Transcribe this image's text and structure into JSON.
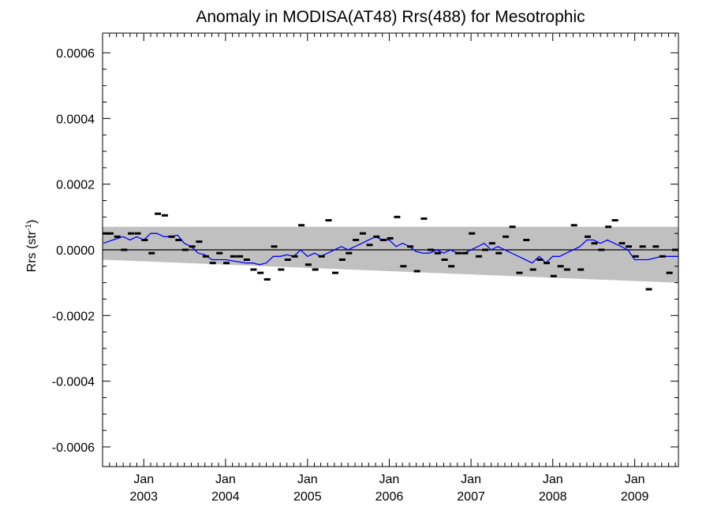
{
  "chart_data": {
    "type": "scatter",
    "title": "Anomaly in MODISA(AT48) Rrs(488) for Mesotrophic",
    "ylabel": {
      "prefix": "Rrs (str",
      "sup": "-1",
      "suffix": ")"
    },
    "xlabel": "",
    "x_range": [
      "2002-07-01",
      "2009-07-15"
    ],
    "ylim": [
      -0.00066,
      0.00066
    ],
    "y_ticks": [
      {
        "value": 0.0006,
        "label": "0.0006"
      },
      {
        "value": 0.0004,
        "label": "0.0004"
      },
      {
        "value": 0.0002,
        "label": "0.0002"
      },
      {
        "value": 0.0,
        "label": "0.0000"
      },
      {
        "value": -0.0002,
        "label": "-0.0002"
      },
      {
        "value": -0.0004,
        "label": "-0.0004"
      },
      {
        "value": -0.0006,
        "label": "-0.0006"
      }
    ],
    "x_ticks": [
      {
        "date": "2003-01-01",
        "month": "Jan",
        "year": "2003"
      },
      {
        "date": "2004-01-01",
        "month": "Jan",
        "year": "2004"
      },
      {
        "date": "2005-01-01",
        "month": "Jan",
        "year": "2005"
      },
      {
        "date": "2006-01-01",
        "month": "Jan",
        "year": "2006"
      },
      {
        "date": "2007-01-01",
        "month": "Jan",
        "year": "2007"
      },
      {
        "date": "2008-01-01",
        "month": "Jan",
        "year": "2008"
      },
      {
        "date": "2009-01-01",
        "month": "Jan",
        "year": "2009"
      }
    ],
    "grid": false,
    "legend": "none",
    "band": {
      "color": "#c0c0c0",
      "upper": [
        {
          "date": "2002-07-01",
          "y": 7e-05
        },
        {
          "date": "2009-07-15",
          "y": 7e-05
        }
      ],
      "lower": [
        {
          "date": "2002-07-01",
          "y": -3e-05
        },
        {
          "date": "2009-07-15",
          "y": -0.0001
        }
      ]
    },
    "zero_line": {
      "y": 0.0,
      "color": "#000000"
    },
    "series": [
      {
        "type": "scatter",
        "marker": "dash",
        "color": "#000000",
        "points": [
          {
            "date": "2002-07-05",
            "y": 5e-05
          },
          {
            "date": "2002-08-05",
            "y": 5e-05
          },
          {
            "date": "2002-09-05",
            "y": 4e-05
          },
          {
            "date": "2002-10-05",
            "y": 0.0
          },
          {
            "date": "2002-11-05",
            "y": 5e-05
          },
          {
            "date": "2002-12-05",
            "y": 5e-05
          },
          {
            "date": "2003-01-05",
            "y": 3e-05
          },
          {
            "date": "2003-02-05",
            "y": -1e-05
          },
          {
            "date": "2003-03-05",
            "y": 0.00011
          },
          {
            "date": "2003-04-05",
            "y": 0.000105
          },
          {
            "date": "2003-05-05",
            "y": 4e-05
          },
          {
            "date": "2003-06-05",
            "y": 3e-05
          },
          {
            "date": "2003-07-05",
            "y": 0.0
          },
          {
            "date": "2003-08-05",
            "y": 1e-05
          },
          {
            "date": "2003-09-05",
            "y": 2.5e-05
          },
          {
            "date": "2003-10-05",
            "y": -2e-05
          },
          {
            "date": "2003-11-05",
            "y": -4e-05
          },
          {
            "date": "2003-12-05",
            "y": -1e-05
          },
          {
            "date": "2004-01-05",
            "y": -4e-05
          },
          {
            "date": "2004-02-05",
            "y": -2e-05
          },
          {
            "date": "2004-03-05",
            "y": -2e-05
          },
          {
            "date": "2004-04-05",
            "y": -3e-05
          },
          {
            "date": "2004-05-05",
            "y": -6e-05
          },
          {
            "date": "2004-06-05",
            "y": -7e-05
          },
          {
            "date": "2004-07-05",
            "y": -9e-05
          },
          {
            "date": "2004-08-05",
            "y": 1e-05
          },
          {
            "date": "2004-09-05",
            "y": -6e-05
          },
          {
            "date": "2004-10-05",
            "y": -3e-05
          },
          {
            "date": "2004-11-05",
            "y": -2e-05
          },
          {
            "date": "2004-12-05",
            "y": 7.5e-05
          },
          {
            "date": "2005-01-05",
            "y": -4.5e-05
          },
          {
            "date": "2005-02-05",
            "y": -6e-05
          },
          {
            "date": "2005-03-05",
            "y": -2e-05
          },
          {
            "date": "2005-04-05",
            "y": 9e-05
          },
          {
            "date": "2005-05-05",
            "y": -7e-05
          },
          {
            "date": "2005-06-05",
            "y": -3e-05
          },
          {
            "date": "2005-07-05",
            "y": -1e-05
          },
          {
            "date": "2005-08-05",
            "y": 3e-05
          },
          {
            "date": "2005-09-05",
            "y": 5e-05
          },
          {
            "date": "2005-10-05",
            "y": 1.5e-05
          },
          {
            "date": "2005-11-05",
            "y": 4e-05
          },
          {
            "date": "2005-12-05",
            "y": 3e-05
          },
          {
            "date": "2006-01-05",
            "y": 3.5e-05
          },
          {
            "date": "2006-02-05",
            "y": 0.0001
          },
          {
            "date": "2006-03-05",
            "y": -5e-05
          },
          {
            "date": "2006-04-05",
            "y": 1e-05
          },
          {
            "date": "2006-05-05",
            "y": -6.5e-05
          },
          {
            "date": "2006-06-05",
            "y": 9.5e-05
          },
          {
            "date": "2006-07-05",
            "y": 0.0
          },
          {
            "date": "2006-08-05",
            "y": -1e-05
          },
          {
            "date": "2006-09-05",
            "y": -3e-05
          },
          {
            "date": "2006-10-05",
            "y": -5e-05
          },
          {
            "date": "2006-11-05",
            "y": -1e-05
          },
          {
            "date": "2006-12-05",
            "y": -1e-05
          },
          {
            "date": "2007-01-05",
            "y": 5e-05
          },
          {
            "date": "2007-02-05",
            "y": -2e-05
          },
          {
            "date": "2007-03-05",
            "y": 0.0
          },
          {
            "date": "2007-04-05",
            "y": 2e-05
          },
          {
            "date": "2007-05-05",
            "y": -1e-05
          },
          {
            "date": "2007-06-05",
            "y": 4e-05
          },
          {
            "date": "2007-07-05",
            "y": 7e-05
          },
          {
            "date": "2007-08-05",
            "y": -7e-05
          },
          {
            "date": "2007-09-05",
            "y": 3e-05
          },
          {
            "date": "2007-10-05",
            "y": -6e-05
          },
          {
            "date": "2007-11-05",
            "y": -3e-05
          },
          {
            "date": "2007-12-05",
            "y": -4e-05
          },
          {
            "date": "2008-01-05",
            "y": -8e-05
          },
          {
            "date": "2008-02-05",
            "y": -5e-05
          },
          {
            "date": "2008-03-05",
            "y": -6e-05
          },
          {
            "date": "2008-04-05",
            "y": 7.5e-05
          },
          {
            "date": "2008-05-05",
            "y": -6e-05
          },
          {
            "date": "2008-06-05",
            "y": 4e-05
          },
          {
            "date": "2008-07-05",
            "y": 2e-05
          },
          {
            "date": "2008-08-05",
            "y": 0.0
          },
          {
            "date": "2008-09-05",
            "y": 7e-05
          },
          {
            "date": "2008-10-05",
            "y": 9e-05
          },
          {
            "date": "2008-11-05",
            "y": 2e-05
          },
          {
            "date": "2008-12-05",
            "y": 1e-05
          },
          {
            "date": "2009-01-05",
            "y": -2e-05
          },
          {
            "date": "2009-02-05",
            "y": 1e-05
          },
          {
            "date": "2009-03-05",
            "y": -0.00012
          },
          {
            "date": "2009-04-05",
            "y": 1e-05
          },
          {
            "date": "2009-05-05",
            "y": -2e-05
          },
          {
            "date": "2009-06-05",
            "y": -7e-05
          },
          {
            "date": "2009-07-05",
            "y": 0.0
          }
        ]
      },
      {
        "type": "line",
        "color": "#0000ff",
        "points": [
          {
            "date": "2002-07-05",
            "y": 2e-05
          },
          {
            "date": "2002-08-15",
            "y": 3e-05
          },
          {
            "date": "2002-10-01",
            "y": 4e-05
          },
          {
            "date": "2002-11-01",
            "y": 3e-05
          },
          {
            "date": "2002-12-01",
            "y": 4e-05
          },
          {
            "date": "2003-01-01",
            "y": 3e-05
          },
          {
            "date": "2003-02-01",
            "y": 5e-05
          },
          {
            "date": "2003-03-01",
            "y": 5e-05
          },
          {
            "date": "2003-04-01",
            "y": 4e-05
          },
          {
            "date": "2003-05-01",
            "y": 4e-05
          },
          {
            "date": "2003-06-01",
            "y": 4.5e-05
          },
          {
            "date": "2003-07-01",
            "y": 2e-05
          },
          {
            "date": "2003-08-01",
            "y": 1e-05
          },
          {
            "date": "2003-09-01",
            "y": -1e-05
          },
          {
            "date": "2003-10-01",
            "y": -1.5e-05
          },
          {
            "date": "2003-11-01",
            "y": -3e-05
          },
          {
            "date": "2003-12-01",
            "y": -3e-05
          },
          {
            "date": "2004-01-01",
            "y": -3e-05
          },
          {
            "date": "2004-02-15",
            "y": -3.5e-05
          },
          {
            "date": "2004-04-01",
            "y": -4e-05
          },
          {
            "date": "2004-05-01",
            "y": -4e-05
          },
          {
            "date": "2004-06-01",
            "y": -4.5e-05
          },
          {
            "date": "2004-07-01",
            "y": -4e-05
          },
          {
            "date": "2004-08-01",
            "y": -2e-05
          },
          {
            "date": "2004-09-01",
            "y": -2e-05
          },
          {
            "date": "2004-10-01",
            "y": -1.5e-05
          },
          {
            "date": "2004-11-01",
            "y": -2e-05
          },
          {
            "date": "2004-12-01",
            "y": 0.0
          },
          {
            "date": "2005-01-01",
            "y": -2e-05
          },
          {
            "date": "2005-02-01",
            "y": -1e-05
          },
          {
            "date": "2005-03-01",
            "y": -2e-05
          },
          {
            "date": "2005-04-01",
            "y": -1e-05
          },
          {
            "date": "2005-05-01",
            "y": 0.0
          },
          {
            "date": "2005-06-01",
            "y": 1e-05
          },
          {
            "date": "2005-07-01",
            "y": 0.0
          },
          {
            "date": "2005-08-01",
            "y": 1e-05
          },
          {
            "date": "2005-09-01",
            "y": 2e-05
          },
          {
            "date": "2005-10-01",
            "y": 3e-05
          },
          {
            "date": "2005-11-01",
            "y": 4e-05
          },
          {
            "date": "2005-12-01",
            "y": 3e-05
          },
          {
            "date": "2006-01-01",
            "y": 3e-05
          },
          {
            "date": "2006-02-01",
            "y": 1e-05
          },
          {
            "date": "2006-03-01",
            "y": 2e-05
          },
          {
            "date": "2006-04-01",
            "y": 1e-05
          },
          {
            "date": "2006-05-01",
            "y": -5e-06
          },
          {
            "date": "2006-06-01",
            "y": -1e-05
          },
          {
            "date": "2006-07-01",
            "y": -1e-05
          },
          {
            "date": "2006-08-01",
            "y": 0.0
          },
          {
            "date": "2006-09-01",
            "y": -1e-05
          },
          {
            "date": "2006-10-01",
            "y": 0.0
          },
          {
            "date": "2006-11-01",
            "y": -1e-05
          },
          {
            "date": "2006-12-01",
            "y": -1e-05
          },
          {
            "date": "2007-01-01",
            "y": 0.0
          },
          {
            "date": "2007-02-01",
            "y": 1e-05
          },
          {
            "date": "2007-03-01",
            "y": 2e-05
          },
          {
            "date": "2007-04-01",
            "y": 0.0
          },
          {
            "date": "2007-05-01",
            "y": 1e-05
          },
          {
            "date": "2007-06-01",
            "y": 0.0
          },
          {
            "date": "2007-07-01",
            "y": -1e-05
          },
          {
            "date": "2007-08-01",
            "y": -2e-05
          },
          {
            "date": "2007-09-01",
            "y": -3e-05
          },
          {
            "date": "2007-10-01",
            "y": -4e-05
          },
          {
            "date": "2007-11-01",
            "y": -2e-05
          },
          {
            "date": "2007-12-01",
            "y": -4e-05
          },
          {
            "date": "2008-01-01",
            "y": -2e-05
          },
          {
            "date": "2008-02-01",
            "y": -2e-05
          },
          {
            "date": "2008-03-01",
            "y": -1e-05
          },
          {
            "date": "2008-04-01",
            "y": 0.0
          },
          {
            "date": "2008-05-01",
            "y": 1e-05
          },
          {
            "date": "2008-06-01",
            "y": 3e-05
          },
          {
            "date": "2008-07-01",
            "y": 3e-05
          },
          {
            "date": "2008-08-01",
            "y": 2e-05
          },
          {
            "date": "2008-09-01",
            "y": 3e-05
          },
          {
            "date": "2008-10-01",
            "y": 2e-05
          },
          {
            "date": "2008-11-01",
            "y": 1e-05
          },
          {
            "date": "2008-12-01",
            "y": 0.0
          },
          {
            "date": "2009-01-01",
            "y": -3e-05
          },
          {
            "date": "2009-02-01",
            "y": -3e-05
          },
          {
            "date": "2009-03-01",
            "y": -3e-05
          },
          {
            "date": "2009-04-01",
            "y": -2.5e-05
          },
          {
            "date": "2009-05-01",
            "y": -2e-05
          },
          {
            "date": "2009-06-01",
            "y": -2e-05
          },
          {
            "date": "2009-07-15",
            "y": -2e-05
          }
        ]
      }
    ]
  }
}
